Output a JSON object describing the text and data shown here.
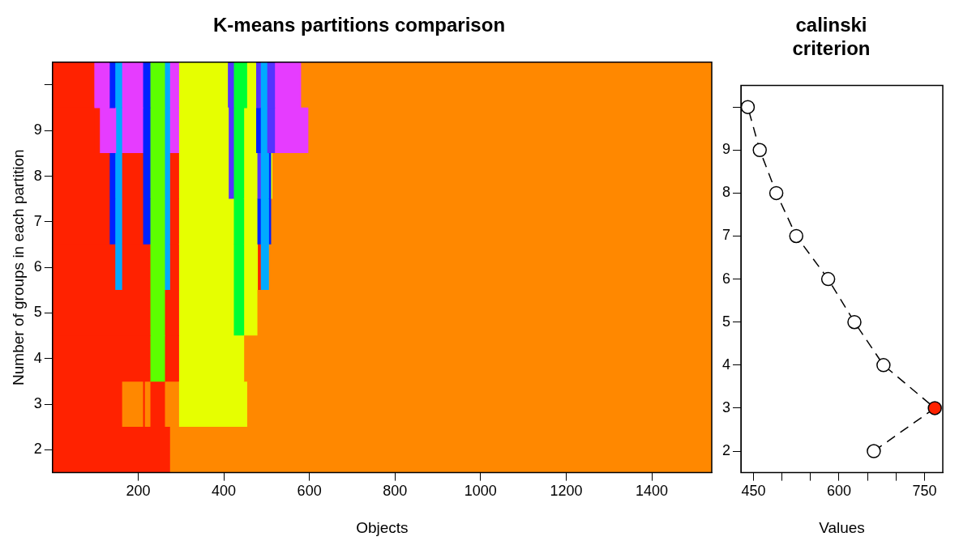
{
  "chart_data": [
    {
      "type": "bar",
      "orientation": "horizontal",
      "stacked": true,
      "title": "K-means partitions comparison",
      "xlabel": "Objects",
      "ylabel": "Number of groups in each partition",
      "categories": [
        null,
        "9",
        "8",
        "7",
        "6",
        "5",
        "4",
        "3",
        "2"
      ],
      "xlim": [
        0,
        1540
      ],
      "xticks": [
        200,
        400,
        600,
        800,
        1000,
        1200,
        1400
      ],
      "legend": false,
      "grid": false,
      "series": [
        {
          "values": [
            97,
            97,
            133,
            133,
            146,
            228,
            228,
            162,
            274
          ],
          "colors": [
            "#ff2200",
            "#ff2200",
            "#ff2200",
            "#ff2200",
            "#ff2200",
            "#ff2200",
            "#ff2200",
            "#ff2200",
            "#ff2200"
          ]
        },
        {
          "values": [
            36,
            null,
            13,
            13,
            16,
            34,
            34,
            49,
            1266
          ],
          "colors": [
            "#e63cff",
            null,
            "#0022ff",
            "#0022ff",
            "#00aaff",
            "#5cff00",
            "#5cff00",
            "#ff8800",
            "#ff8800"
          ]
        },
        {
          "values": [
            13,
            13,
            16,
            16,
            66,
            33,
            33,
            4,
            null
          ],
          "colors": [
            "#0022ff",
            "#ff2200",
            "#00aaff",
            "#00aaff",
            "#ff2200",
            "#ff2200",
            "#ff2200",
            "#ff2200",
            null
          ]
        },
        {
          "values": [
            16,
            38,
            49,
            49,
            34,
            128,
            152,
            13,
            null
          ],
          "colors": [
            "#00aaff",
            "#e63cff",
            "#ff2200",
            "#ff2200",
            "#5cff00",
            "#e6ff00",
            "#e6ff00",
            "#ff8800",
            null
          ]
        },
        {
          "values": [
            49,
            14,
            17,
            17,
            12,
            24,
            1093,
            34,
            null
          ],
          "colors": [
            "#e63cff",
            "#00aaff",
            "#0022ff",
            "#0022ff",
            "#00aaff",
            "#00ff33",
            "#ff8800",
            "#ff2200",
            null
          ]
        },
        {
          "values": [
            17,
            49,
            34,
            34,
            21,
            31,
            null,
            33,
            null
          ],
          "colors": [
            "#0022ff",
            "#e63cff",
            "#5cff00",
            "#5cff00",
            "#ff2200",
            "#e6ff00",
            null,
            "#ff8800",
            null
          ]
        },
        {
          "values": [
            34,
            17,
            12,
            12,
            128,
            1062,
            null,
            159,
            null
          ],
          "colors": [
            "#5cff00",
            "#0022ff",
            "#00aaff",
            "#00aaff",
            "#e6ff00",
            "#ff8800",
            null,
            "#e6ff00",
            null
          ]
        },
        {
          "values": [
            12,
            34,
            21,
            21,
            24,
            null,
            null,
            1086,
            null
          ],
          "colors": [
            "#00aaff",
            "#5cff00",
            "#ff2200",
            "#ff2200",
            "#00ff33",
            null,
            null,
            "#ff8800",
            null
          ]
        },
        {
          "values": [
            21,
            12,
            116,
            128,
            32,
            null,
            null,
            null,
            null
          ],
          "colors": [
            "#e63cff",
            "#00aaff",
            "#e6ff00",
            "#e6ff00",
            "#e6ff00",
            null,
            null,
            null,
            null
          ]
        },
        {
          "values": [
            114,
            21,
            12,
            24,
            7,
            null,
            null,
            null,
            null
          ],
          "colors": [
            "#e6ff00",
            "#e63cff",
            "#5533ff",
            "#00ff33",
            "#ff2200",
            null,
            null,
            null,
            null
          ]
        },
        {
          "values": [
            14,
            116,
            24,
            31,
            19,
            null,
            null,
            null,
            null
          ],
          "colors": [
            "#5533ff",
            "#e6ff00",
            "#00ff33",
            "#e6ff00",
            "#00aaff",
            null,
            null,
            null,
            null
          ]
        },
        {
          "values": [
            31,
            12,
            31,
            8,
            1035,
            null,
            null,
            null,
            null
          ],
          "colors": [
            "#00ff33",
            "#5533ff",
            "#e6ff00",
            "#0022ff",
            "#ff8800",
            null,
            null,
            null,
            null
          ]
        },
        {
          "values": [
            21,
            24,
            8,
            19,
            null,
            null,
            null,
            null,
            null
          ],
          "colors": [
            "#e6ff00",
            "#00ff33",
            "#5533ff",
            "#00aaff",
            null,
            null,
            null,
            null,
            null
          ]
        },
        {
          "values": [
            11,
            28,
            19,
            5,
            null,
            null,
            null,
            null,
            null
          ],
          "colors": [
            "#5533ff",
            "#e6ff00",
            "#00aaff",
            "#0022ff",
            null,
            null,
            null,
            null,
            null
          ]
        },
        {
          "values": [
            15,
            11,
            5,
            1030,
            null,
            null,
            null,
            null,
            null
          ],
          "colors": [
            "#00aaff",
            "#0022ff",
            "#0022ff",
            "#ff8800",
            null,
            null,
            null,
            null,
            null
          ]
        },
        {
          "values": [
            18,
            15,
            3,
            null,
            null,
            null,
            null,
            null,
            null
          ],
          "colors": [
            "#5533ff",
            "#00aaff",
            "#e6ff00",
            null,
            null,
            null,
            null,
            null,
            null
          ]
        },
        {
          "values": [
            61,
            18,
            1027,
            null,
            null,
            null,
            null,
            null,
            null
          ],
          "colors": [
            "#e63cff",
            "#5533ff",
            "#ff8800",
            null,
            null,
            null,
            null,
            null,
            null
          ]
        },
        {
          "values": [
            960,
            78,
            null,
            null,
            null,
            null,
            null,
            null,
            null
          ],
          "colors": [
            "#ff8800",
            "#e63cff",
            null,
            null,
            null,
            null,
            null,
            null,
            null
          ]
        },
        {
          "values": [
            null,
            943,
            null,
            null,
            null,
            null,
            null,
            null,
            null
          ],
          "colors": [
            null,
            "#ff8800",
            null,
            null,
            null,
            null,
            null,
            null,
            null
          ]
        }
      ]
    },
    {
      "type": "line",
      "title": "calinski criterion",
      "xlabel": "Values",
      "xlim": [
        428,
        782
      ],
      "xticks": [
        450,
        {
          "value": 500,
          "label": null
        },
        {
          "value": 550,
          "label": null
        },
        600,
        {
          "value": 650,
          "label": null
        },
        {
          "value": 700,
          "label": null
        },
        750
      ],
      "ylim": [
        1.5,
        10.5
      ],
      "yticks": [
        2,
        3,
        4,
        5,
        6,
        7,
        8,
        9,
        {
          "value": 10,
          "label": null
        }
      ],
      "legend": false,
      "grid": false,
      "marker": "circle",
      "line_style": "dashed",
      "series": [
        {
          "color": "#000000",
          "colors": [
            "#ffffff",
            "#ff2200",
            "#ffffff",
            "#ffffff",
            "#ffffff",
            "#ffffff",
            "#ffffff",
            "#ffffff",
            "#ffffff"
          ],
          "x": [
            661,
            768,
            678,
            627,
            581,
            525,
            490,
            461,
            440
          ],
          "values": [
            2,
            3,
            4,
            5,
            6,
            7,
            8,
            9,
            10
          ]
        }
      ]
    }
  ]
}
